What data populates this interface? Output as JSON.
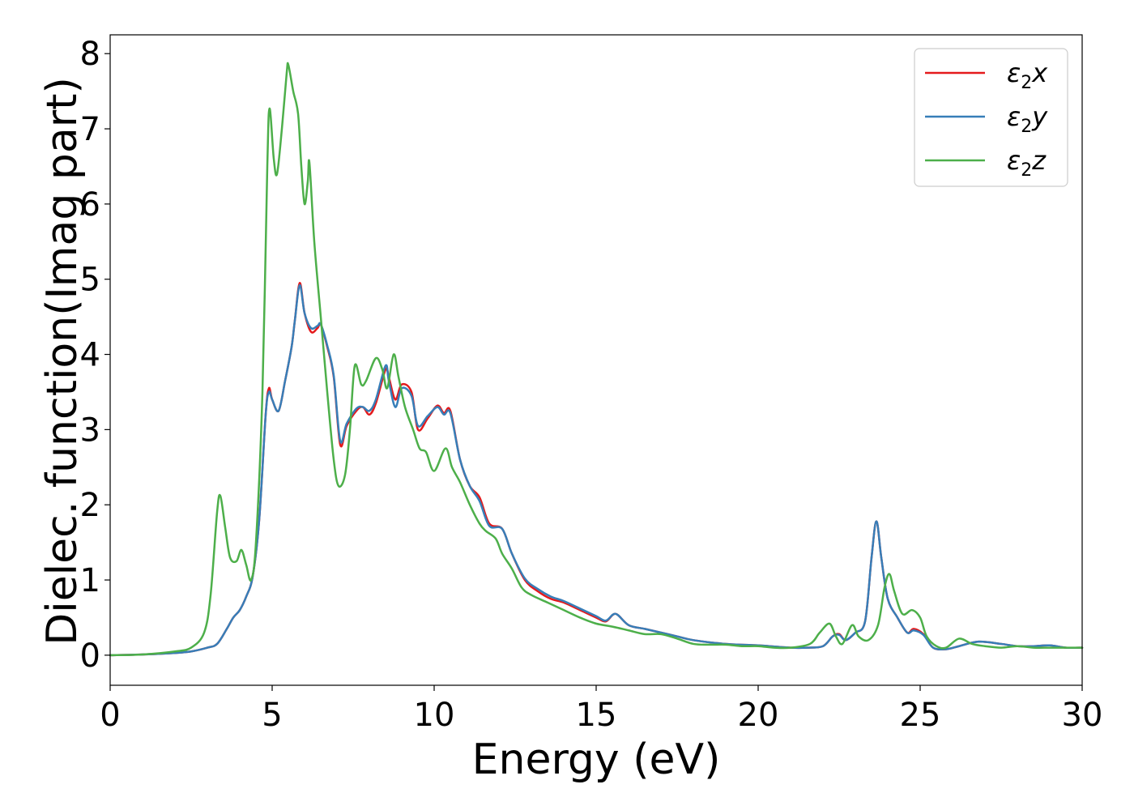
{
  "chart_data": {
    "type": "line",
    "title": "",
    "xlabel": "Energy (eV)",
    "ylabel": "Dielec. function(Imag part)",
    "xlim": [
      0,
      30
    ],
    "ylim": [
      -0.4,
      8.25
    ],
    "xticks": [
      0,
      5,
      10,
      15,
      20,
      25,
      30
    ],
    "yticks": [
      0,
      1,
      2,
      3,
      4,
      5,
      6,
      7,
      8
    ],
    "grid": false,
    "legend_position": "top-right",
    "series": [
      {
        "name": "ε₂x",
        "legend_base": "ε",
        "legend_sub": "2",
        "legend_suffix": "x",
        "color": "#e41a1c",
        "points": [
          [
            0,
            0
          ],
          [
            1,
            0.01
          ],
          [
            2,
            0.03
          ],
          [
            2.5,
            0.05
          ],
          [
            3,
            0.1
          ],
          [
            3.3,
            0.15
          ],
          [
            3.6,
            0.35
          ],
          [
            3.8,
            0.5
          ],
          [
            4,
            0.6
          ],
          [
            4.2,
            0.78
          ],
          [
            4.4,
            1.05
          ],
          [
            4.6,
            1.8
          ],
          [
            4.8,
            3.2
          ],
          [
            4.9,
            3.55
          ],
          [
            5.0,
            3.4
          ],
          [
            5.2,
            3.25
          ],
          [
            5.4,
            3.65
          ],
          [
            5.6,
            4.1
          ],
          [
            5.7,
            4.45
          ],
          [
            5.85,
            4.95
          ],
          [
            6.0,
            4.55
          ],
          [
            6.2,
            4.3
          ],
          [
            6.4,
            4.35
          ],
          [
            6.5,
            4.4
          ],
          [
            6.7,
            4.1
          ],
          [
            6.9,
            3.7
          ],
          [
            7.1,
            2.8
          ],
          [
            7.3,
            3.05
          ],
          [
            7.6,
            3.25
          ],
          [
            7.8,
            3.3
          ],
          [
            8.0,
            3.2
          ],
          [
            8.2,
            3.35
          ],
          [
            8.5,
            3.8
          ],
          [
            8.6,
            3.7
          ],
          [
            8.8,
            3.4
          ],
          [
            9.0,
            3.6
          ],
          [
            9.3,
            3.5
          ],
          [
            9.5,
            3.0
          ],
          [
            9.8,
            3.15
          ],
          [
            10.1,
            3.32
          ],
          [
            10.3,
            3.22
          ],
          [
            10.5,
            3.25
          ],
          [
            10.8,
            2.6
          ],
          [
            11.1,
            2.25
          ],
          [
            11.4,
            2.1
          ],
          [
            11.7,
            1.75
          ],
          [
            12.1,
            1.68
          ],
          [
            12.4,
            1.35
          ],
          [
            12.8,
            1.0
          ],
          [
            13.2,
            0.85
          ],
          [
            13.6,
            0.75
          ],
          [
            14,
            0.7
          ],
          [
            14.5,
            0.6
          ],
          [
            15,
            0.5
          ],
          [
            15.3,
            0.45
          ],
          [
            15.6,
            0.55
          ],
          [
            16,
            0.4
          ],
          [
            16.5,
            0.35
          ],
          [
            17,
            0.3
          ],
          [
            17.5,
            0.25
          ],
          [
            18,
            0.2
          ],
          [
            19,
            0.15
          ],
          [
            20,
            0.13
          ],
          [
            21,
            0.1
          ],
          [
            21.5,
            0.1
          ],
          [
            22,
            0.12
          ],
          [
            22.3,
            0.25
          ],
          [
            22.5,
            0.28
          ],
          [
            22.7,
            0.2
          ],
          [
            23.0,
            0.3
          ],
          [
            23.3,
            0.45
          ],
          [
            23.5,
            1.3
          ],
          [
            23.65,
            1.78
          ],
          [
            23.8,
            1.3
          ],
          [
            24.0,
            0.75
          ],
          [
            24.3,
            0.5
          ],
          [
            24.6,
            0.3
          ],
          [
            24.8,
            0.35
          ],
          [
            25.1,
            0.28
          ],
          [
            25.4,
            0.1
          ],
          [
            25.8,
            0.08
          ],
          [
            26.2,
            0.12
          ],
          [
            26.8,
            0.18
          ],
          [
            27.5,
            0.15
          ],
          [
            28,
            0.12
          ],
          [
            28.5,
            0.12
          ],
          [
            29,
            0.13
          ],
          [
            29.5,
            0.1
          ],
          [
            30,
            0.1
          ]
        ]
      },
      {
        "name": "ε₂y",
        "legend_base": "ε",
        "legend_sub": "2",
        "legend_suffix": "y",
        "color": "#377eb8",
        "points": [
          [
            0,
            0
          ],
          [
            1,
            0.01
          ],
          [
            2,
            0.03
          ],
          [
            2.5,
            0.05
          ],
          [
            3,
            0.1
          ],
          [
            3.3,
            0.15
          ],
          [
            3.6,
            0.35
          ],
          [
            3.8,
            0.5
          ],
          [
            4,
            0.6
          ],
          [
            4.2,
            0.78
          ],
          [
            4.4,
            1.05
          ],
          [
            4.6,
            1.8
          ],
          [
            4.8,
            3.2
          ],
          [
            4.9,
            3.5
          ],
          [
            5.0,
            3.4
          ],
          [
            5.2,
            3.25
          ],
          [
            5.4,
            3.65
          ],
          [
            5.6,
            4.1
          ],
          [
            5.7,
            4.45
          ],
          [
            5.85,
            4.92
          ],
          [
            6.0,
            4.55
          ],
          [
            6.2,
            4.35
          ],
          [
            6.4,
            4.38
          ],
          [
            6.5,
            4.4
          ],
          [
            6.7,
            4.12
          ],
          [
            6.9,
            3.72
          ],
          [
            7.1,
            2.85
          ],
          [
            7.3,
            3.08
          ],
          [
            7.6,
            3.28
          ],
          [
            7.8,
            3.3
          ],
          [
            8.0,
            3.25
          ],
          [
            8.2,
            3.4
          ],
          [
            8.5,
            3.85
          ],
          [
            8.6,
            3.65
          ],
          [
            8.8,
            3.3
          ],
          [
            9.0,
            3.55
          ],
          [
            9.3,
            3.45
          ],
          [
            9.5,
            3.05
          ],
          [
            9.8,
            3.18
          ],
          [
            10.1,
            3.3
          ],
          [
            10.3,
            3.2
          ],
          [
            10.5,
            3.22
          ],
          [
            10.8,
            2.6
          ],
          [
            11.1,
            2.25
          ],
          [
            11.4,
            2.05
          ],
          [
            11.7,
            1.72
          ],
          [
            12.1,
            1.68
          ],
          [
            12.4,
            1.35
          ],
          [
            12.8,
            1.02
          ],
          [
            13.2,
            0.88
          ],
          [
            13.6,
            0.78
          ],
          [
            14,
            0.72
          ],
          [
            14.5,
            0.62
          ],
          [
            15,
            0.52
          ],
          [
            15.3,
            0.46
          ],
          [
            15.6,
            0.55
          ],
          [
            16,
            0.4
          ],
          [
            16.5,
            0.35
          ],
          [
            17,
            0.3
          ],
          [
            17.5,
            0.25
          ],
          [
            18,
            0.2
          ],
          [
            19,
            0.15
          ],
          [
            20,
            0.13
          ],
          [
            21,
            0.1
          ],
          [
            21.5,
            0.1
          ],
          [
            22,
            0.12
          ],
          [
            22.3,
            0.25
          ],
          [
            22.5,
            0.27
          ],
          [
            22.7,
            0.2
          ],
          [
            23.0,
            0.3
          ],
          [
            23.3,
            0.45
          ],
          [
            23.5,
            1.3
          ],
          [
            23.65,
            1.78
          ],
          [
            23.8,
            1.3
          ],
          [
            24.0,
            0.75
          ],
          [
            24.3,
            0.5
          ],
          [
            24.6,
            0.3
          ],
          [
            24.8,
            0.33
          ],
          [
            25.1,
            0.27
          ],
          [
            25.4,
            0.1
          ],
          [
            25.8,
            0.08
          ],
          [
            26.2,
            0.12
          ],
          [
            26.8,
            0.18
          ],
          [
            27.5,
            0.15
          ],
          [
            28,
            0.12
          ],
          [
            28.5,
            0.12
          ],
          [
            29,
            0.13
          ],
          [
            29.5,
            0.1
          ],
          [
            30,
            0.1
          ]
        ]
      },
      {
        "name": "ε₂z",
        "legend_base": "ε",
        "legend_sub": "2",
        "legend_suffix": "z",
        "color": "#4daf4a",
        "points": [
          [
            0,
            0
          ],
          [
            1,
            0.01
          ],
          [
            2,
            0.05
          ],
          [
            2.5,
            0.1
          ],
          [
            2.9,
            0.3
          ],
          [
            3.1,
            0.8
          ],
          [
            3.3,
            1.9
          ],
          [
            3.4,
            2.12
          ],
          [
            3.55,
            1.7
          ],
          [
            3.7,
            1.3
          ],
          [
            3.9,
            1.25
          ],
          [
            4.05,
            1.4
          ],
          [
            4.2,
            1.2
          ],
          [
            4.35,
            1.0
          ],
          [
            4.5,
            1.5
          ],
          [
            4.7,
            3.5
          ],
          [
            4.85,
            6.5
          ],
          [
            4.92,
            7.27
          ],
          [
            5.05,
            6.6
          ],
          [
            5.15,
            6.4
          ],
          [
            5.3,
            7.0
          ],
          [
            5.45,
            7.75
          ],
          [
            5.5,
            7.85
          ],
          [
            5.65,
            7.5
          ],
          [
            5.8,
            7.2
          ],
          [
            5.9,
            6.5
          ],
          [
            6.0,
            6.0
          ],
          [
            6.1,
            6.3
          ],
          [
            6.15,
            6.55
          ],
          [
            6.3,
            5.5
          ],
          [
            6.5,
            4.5
          ],
          [
            6.7,
            3.5
          ],
          [
            6.9,
            2.6
          ],
          [
            7.05,
            2.25
          ],
          [
            7.25,
            2.4
          ],
          [
            7.4,
            3.0
          ],
          [
            7.55,
            3.85
          ],
          [
            7.75,
            3.6
          ],
          [
            7.9,
            3.65
          ],
          [
            8.2,
            3.95
          ],
          [
            8.4,
            3.8
          ],
          [
            8.55,
            3.55
          ],
          [
            8.75,
            4.0
          ],
          [
            8.9,
            3.7
          ],
          [
            9.1,
            3.3
          ],
          [
            9.35,
            3.0
          ],
          [
            9.55,
            2.75
          ],
          [
            9.75,
            2.7
          ],
          [
            10.0,
            2.45
          ],
          [
            10.35,
            2.75
          ],
          [
            10.55,
            2.5
          ],
          [
            10.8,
            2.3
          ],
          [
            11.1,
            2.0
          ],
          [
            11.4,
            1.75
          ],
          [
            11.6,
            1.65
          ],
          [
            11.9,
            1.55
          ],
          [
            12.1,
            1.35
          ],
          [
            12.4,
            1.15
          ],
          [
            12.7,
            0.9
          ],
          [
            13.0,
            0.8
          ],
          [
            13.5,
            0.7
          ],
          [
            14,
            0.6
          ],
          [
            14.5,
            0.5
          ],
          [
            15,
            0.42
          ],
          [
            15.5,
            0.38
          ],
          [
            16,
            0.33
          ],
          [
            16.5,
            0.28
          ],
          [
            17,
            0.28
          ],
          [
            17.5,
            0.22
          ],
          [
            18,
            0.15
          ],
          [
            18.5,
            0.14
          ],
          [
            19,
            0.14
          ],
          [
            19.5,
            0.12
          ],
          [
            20,
            0.12
          ],
          [
            20.5,
            0.1
          ],
          [
            21,
            0.1
          ],
          [
            21.6,
            0.15
          ],
          [
            21.9,
            0.3
          ],
          [
            22.2,
            0.42
          ],
          [
            22.4,
            0.25
          ],
          [
            22.6,
            0.15
          ],
          [
            22.9,
            0.4
          ],
          [
            23.1,
            0.25
          ],
          [
            23.4,
            0.2
          ],
          [
            23.7,
            0.4
          ],
          [
            23.9,
            0.9
          ],
          [
            24.05,
            1.08
          ],
          [
            24.2,
            0.85
          ],
          [
            24.45,
            0.55
          ],
          [
            24.75,
            0.6
          ],
          [
            25.0,
            0.5
          ],
          [
            25.2,
            0.25
          ],
          [
            25.5,
            0.12
          ],
          [
            25.8,
            0.1
          ],
          [
            26.2,
            0.22
          ],
          [
            26.6,
            0.15
          ],
          [
            27,
            0.12
          ],
          [
            27.5,
            0.1
          ],
          [
            28,
            0.12
          ],
          [
            28.5,
            0.1
          ],
          [
            29,
            0.1
          ],
          [
            29.5,
            0.1
          ],
          [
            30,
            0.1
          ]
        ]
      }
    ]
  }
}
